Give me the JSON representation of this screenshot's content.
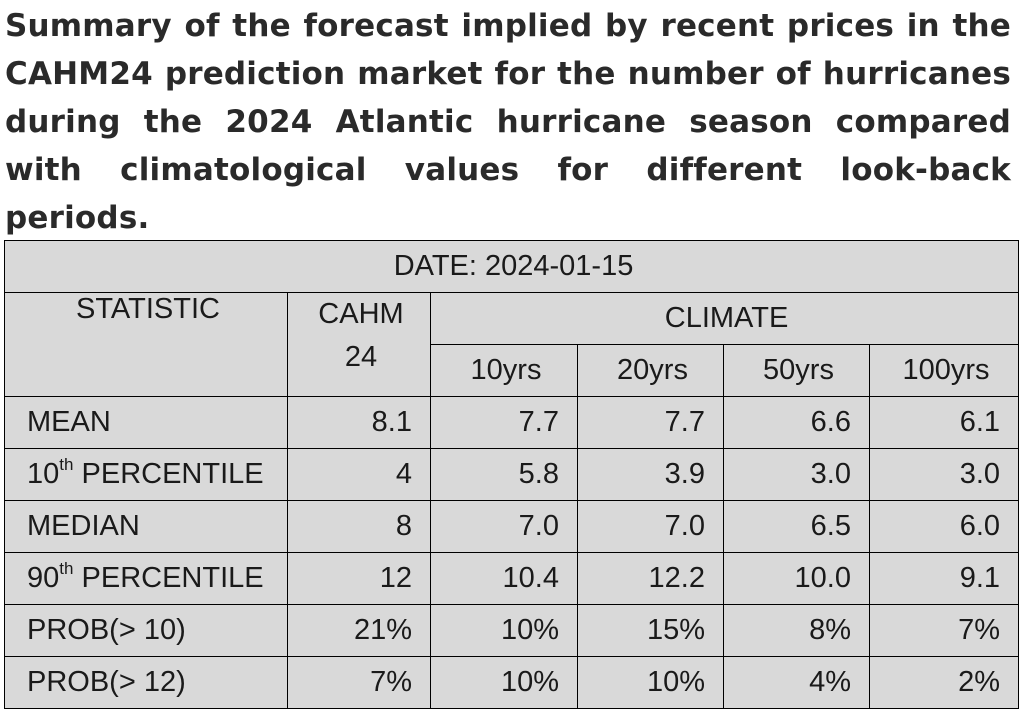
{
  "caption": "Summary of the forecast implied by recent prices in the CAHM24 prediction market for the number of hurricanes during the 2024 Atlantic hurricane season compared with climatological values for different look-back periods.",
  "table": {
    "date_label": "DATE: 2024-01-15",
    "statistic_header": "STATISTIC",
    "cahm_header_line1": "CAHM",
    "cahm_header_line2": "24",
    "climate_header": "CLIMATE",
    "periods": [
      "10yrs",
      "20yrs",
      "50yrs",
      "100yrs"
    ],
    "rows": [
      {
        "stat": "MEAN",
        "cahm": "8.1",
        "climate": [
          "7.7",
          "7.7",
          "6.6",
          "6.1"
        ]
      },
      {
        "stat_prefix": "10",
        "stat_sup": "th",
        "stat_suffix": " PERCENTILE",
        "cahm": "4",
        "climate": [
          "5.8",
          "3.9",
          "3.0",
          "3.0"
        ]
      },
      {
        "stat": "MEDIAN",
        "cahm": "8",
        "climate": [
          "7.0",
          "7.0",
          "6.5",
          "6.0"
        ]
      },
      {
        "stat_prefix": "90",
        "stat_sup": "th",
        "stat_suffix": " PERCENTILE",
        "cahm": "12",
        "climate": [
          "10.4",
          "12.2",
          "10.0",
          "9.1"
        ]
      },
      {
        "stat": "PROB(> 10)",
        "cahm": "21%",
        "climate": [
          "10%",
          "15%",
          "8%",
          "7%"
        ]
      },
      {
        "stat": "PROB(> 12)",
        "cahm": "7%",
        "climate": [
          "10%",
          "10%",
          "4%",
          "2%"
        ]
      }
    ]
  }
}
